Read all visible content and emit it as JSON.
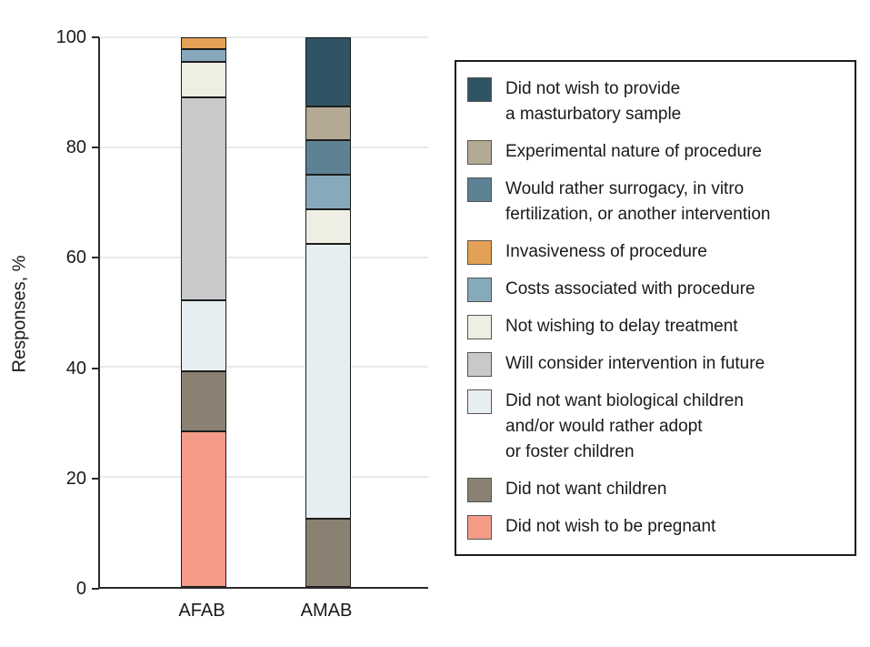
{
  "figure": {
    "ylabel": "Responses, %",
    "x_axis_labels": [
      "AFAB",
      "AMAB"
    ]
  },
  "chart_data": {
    "type": "bar",
    "variant": "stacked-vertical",
    "title": "",
    "xlabel": "",
    "ylabel": "Responses, %",
    "ylim": [
      0,
      100
    ],
    "yticks": [
      0,
      20,
      40,
      60,
      80,
      100
    ],
    "grid": "horizontal",
    "legend_position": "right",
    "categories": [
      "AFAB",
      "AMAB"
    ],
    "stack_note": "series listed in legend order top-to-bottom; bars stack with the last series at the bottom",
    "series": [
      {
        "name": "Did not wish to provide a masturbatory sample",
        "legend_lines": [
          "Did not wish to provide",
          "a masturbatory sample"
        ],
        "color": "#2f5464",
        "values": [
          0,
          12.5
        ]
      },
      {
        "name": "Experimental nature of procedure",
        "legend_lines": [
          "Experimental nature of procedure"
        ],
        "color": "#b4a994",
        "values": [
          0,
          6.25
        ]
      },
      {
        "name": "Would rather surrogacy, in vitro fertilization, or another intervention",
        "legend_lines": [
          "Would rather surrogacy, in vitro",
          "fertilization, or another intervention"
        ],
        "color": "#5d8294",
        "values": [
          0,
          6.25
        ]
      },
      {
        "name": "Invasiveness of procedure",
        "legend_lines": [
          "Invasiveness of procedure"
        ],
        "color": "#e3a155",
        "values": [
          2.2,
          0
        ]
      },
      {
        "name": "Costs associated with procedure",
        "legend_lines": [
          "Costs associated with procedure"
        ],
        "color": "#87a9bc",
        "values": [
          2.2,
          6.25
        ]
      },
      {
        "name": "Not wishing to delay treatment",
        "legend_lines": [
          "Not wishing to delay treatment"
        ],
        "color": "#efeee3",
        "values": [
          6.5,
          6.25
        ]
      },
      {
        "name": "Will consider intervention in future",
        "legend_lines": [
          "Will consider intervention in future"
        ],
        "color": "#c8c9cb",
        "values": [
          36.9,
          0
        ]
      },
      {
        "name": "Did not want biological children and/or would rather adopt or foster children",
        "legend_lines": [
          "Did not want biological children",
          "and/or would rather adopt",
          "or foster children"
        ],
        "color": "#e7eef2",
        "values": [
          13.0,
          50.0
        ]
      },
      {
        "name": "Did not want children",
        "legend_lines": [
          "Did not want children"
        ],
        "color": "#8a8173",
        "values": [
          10.9,
          12.5
        ]
      },
      {
        "name": "Did not wish to be pregnant",
        "legend_lines": [
          "Did not wish to be pregnant"
        ],
        "color": "#f39b87",
        "values": [
          28.3,
          0
        ]
      }
    ]
  }
}
